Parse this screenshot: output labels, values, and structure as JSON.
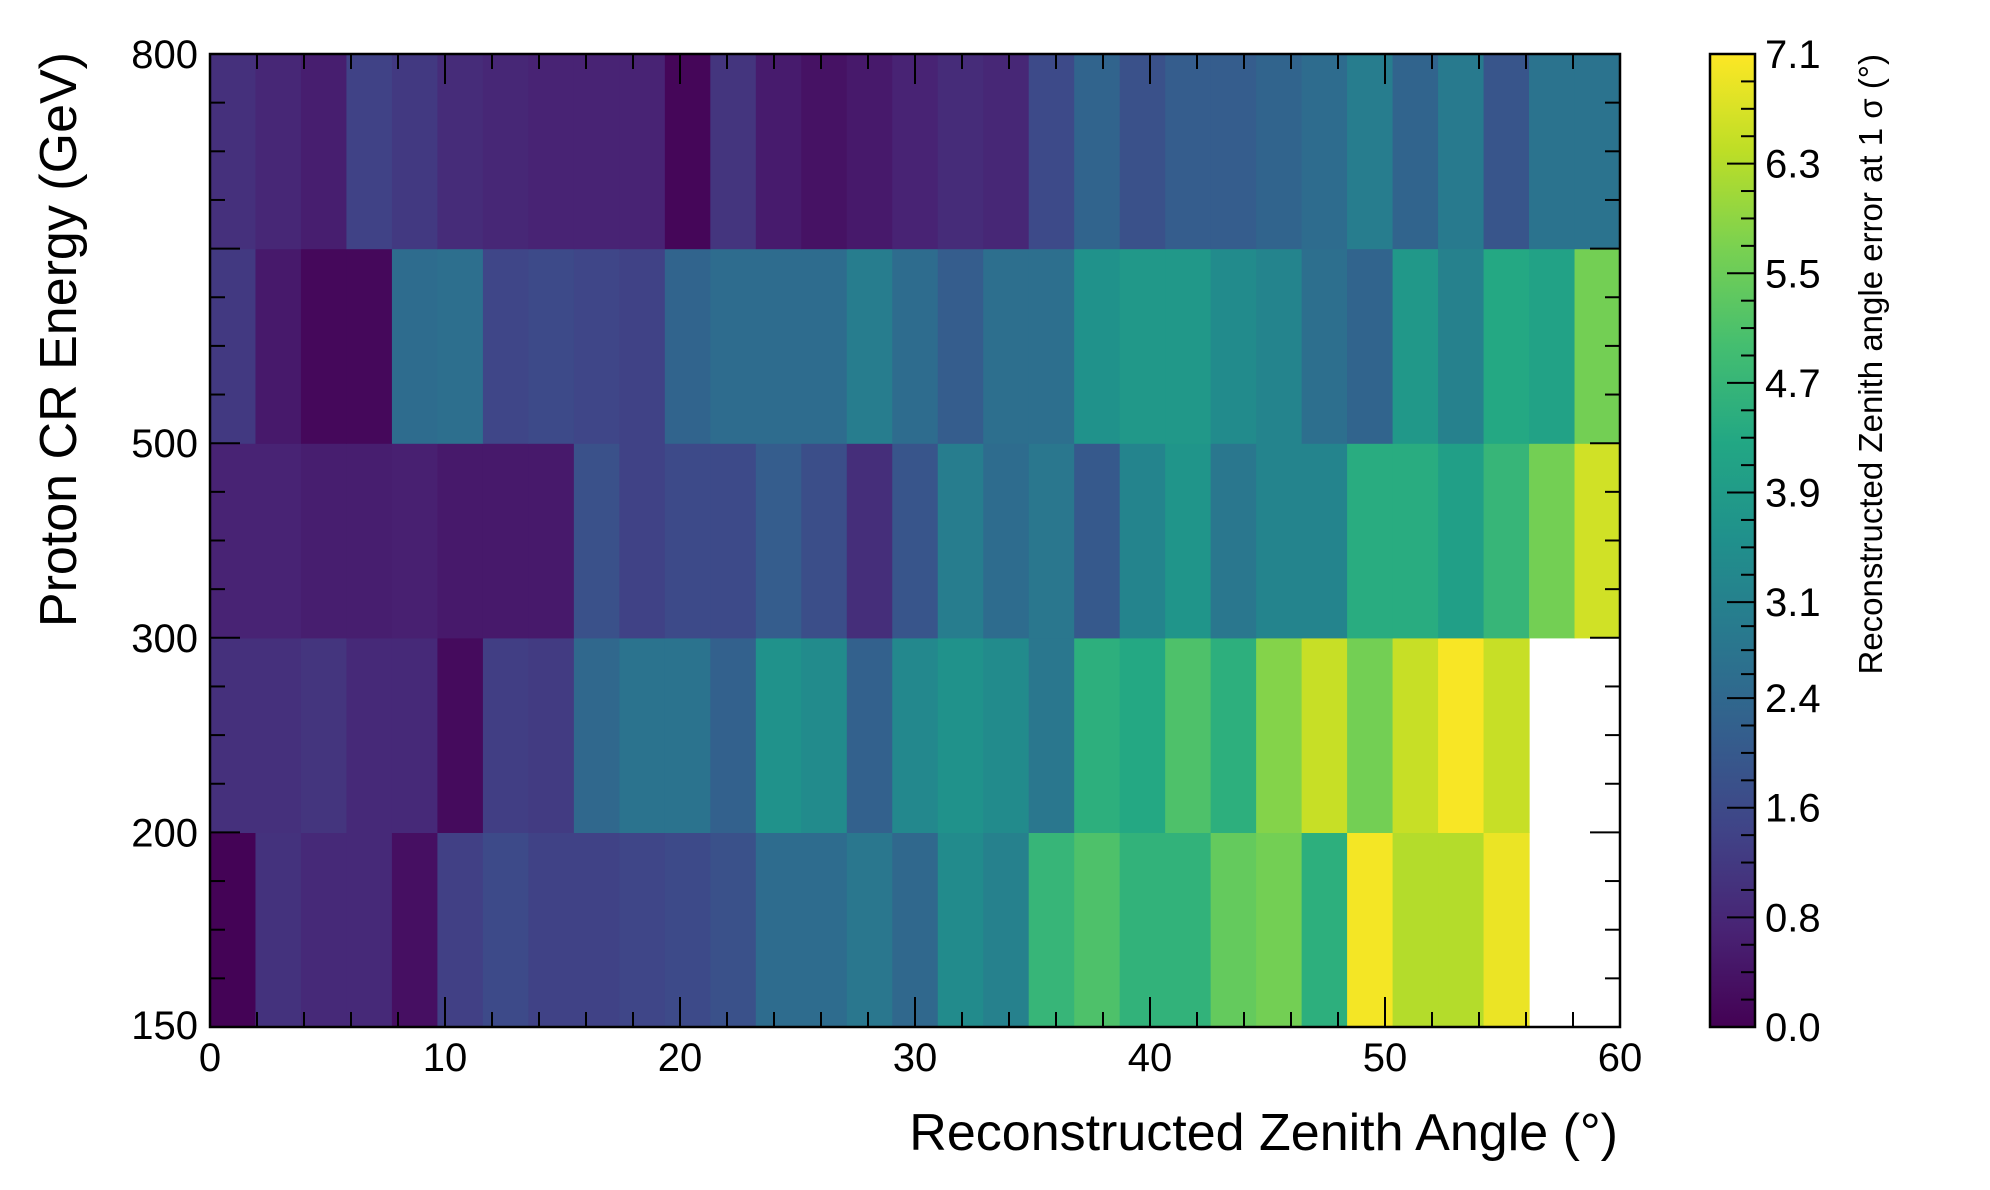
{
  "chart_data": {
    "type": "heatmap",
    "title": "",
    "xlabel": "Reconstructed Zenith Angle (°)",
    "ylabel": "Proton CR Energy (GeV)",
    "xlim": [
      0,
      60
    ],
    "x_ticks": [
      0,
      10,
      20,
      30,
      40,
      50,
      60
    ],
    "x_edges": [
      0,
      1.935,
      3.871,
      5.806,
      7.742,
      9.677,
      11.613,
      13.548,
      15.484,
      17.419,
      19.355,
      21.29,
      23.226,
      25.161,
      27.097,
      29.032,
      30.968,
      32.903,
      34.839,
      36.774,
      38.71,
      40.645,
      42.581,
      44.516,
      46.452,
      48.387,
      50.323,
      52.258,
      54.194,
      56.129,
      58.065,
      60
    ],
    "y_tick_labels": [
      "150",
      "200",
      "300",
      "500",
      "800"
    ],
    "y_rows_bottom_to_top": [
      "150–200",
      "200–300",
      "300–500",
      "500–800",
      "800+"
    ],
    "z_values": [
      [
        0.05,
        1.05,
        0.85,
        0.85,
        0.3,
        1.35,
        1.6,
        1.4,
        1.4,
        1.5,
        1.6,
        1.8,
        2.5,
        2.5,
        2.8,
        2.4,
        3.4,
        3.1,
        4.7,
        5.1,
        4.6,
        4.6,
        5.4,
        5.6,
        4.5,
        7.0,
        6.3,
        6.3,
        6.9,
        null,
        null
      ],
      [
        1.0,
        1.0,
        1.1,
        0.85,
        0.85,
        0.2,
        1.3,
        1.25,
        2.4,
        2.7,
        2.7,
        2.2,
        3.6,
        3.4,
        2.2,
        3.3,
        3.6,
        3.4,
        2.8,
        4.5,
        4.3,
        5.1,
        4.5,
        5.8,
        6.5,
        5.6,
        6.5,
        7.05,
        6.5,
        null,
        null
      ],
      [
        0.7,
        0.7,
        0.6,
        0.6,
        0.65,
        0.5,
        0.5,
        0.5,
        1.8,
        1.4,
        1.6,
        1.6,
        2.1,
        1.7,
        0.95,
        1.9,
        3.0,
        2.5,
        2.8,
        2.0,
        3.2,
        3.7,
        2.8,
        3.2,
        3.2,
        4.4,
        4.4,
        4.0,
        4.7,
        5.6,
        6.6
      ],
      [
        1.2,
        0.5,
        0.15,
        0.15,
        2.5,
        2.6,
        1.5,
        1.6,
        1.5,
        1.4,
        2.3,
        2.5,
        2.5,
        2.5,
        3.0,
        2.5,
        2.1,
        2.6,
        2.6,
        3.6,
        3.8,
        3.8,
        3.4,
        3.2,
        2.6,
        2.3,
        3.8,
        3.1,
        4.3,
        4.1,
        5.6
      ],
      [
        1.0,
        0.8,
        0.6,
        1.4,
        1.2,
        0.9,
        0.8,
        0.7,
        0.7,
        0.7,
        0.1,
        1.1,
        0.55,
        0.35,
        0.5,
        0.7,
        0.9,
        0.8,
        1.6,
        2.3,
        1.8,
        2.1,
        2.1,
        2.3,
        2.5,
        3.0,
        2.3,
        2.9,
        1.9,
        2.7,
        2.7
      ]
    ],
    "colorbar": {
      "label": "Reconstructed Zenith angle error at 1 σ (°)",
      "range": [
        0,
        7.1
      ],
      "ticks": [
        0.0,
        0.8,
        1.6,
        2.4,
        3.1,
        3.9,
        4.7,
        5.5,
        6.3,
        7.1
      ],
      "tick_labels": [
        "0.0",
        "0.8",
        "1.6",
        "2.4",
        "3.1",
        "3.9",
        "4.7",
        "5.5",
        "6.3",
        "7.1"
      ],
      "colormap": "viridis"
    },
    "empty_cells": "white",
    "grid": false,
    "legend": "none"
  }
}
